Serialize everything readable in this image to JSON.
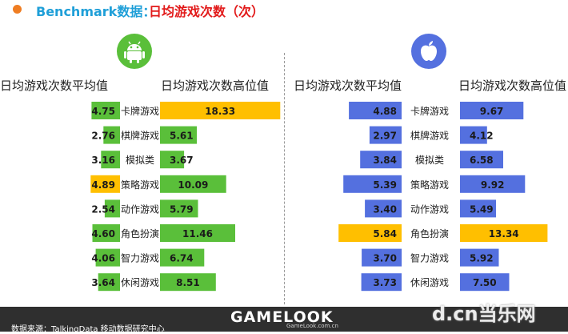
{
  "title": {
    "prefix": "Benchmark数据：",
    "main": "日均游戏次数（次）"
  },
  "colors": {
    "android": "#5abf3a",
    "ios": "#5470df",
    "highlight": "#ffbf00",
    "title_blue": "#1f9fd8",
    "title_red": "#e21b1b",
    "dot": "#ef7d22"
  },
  "icons": {
    "android": "android-robot-icon",
    "ios": "apple-icon"
  },
  "chart_data": {
    "type": "bar",
    "categories": [
      "卡牌游戏",
      "棋牌游戏",
      "模拟类",
      "策略游戏",
      "动作游戏",
      "角色扮演",
      "智力游戏",
      "休闲游戏"
    ],
    "panels": [
      {
        "platform": "Android",
        "series": [
          {
            "name": "日均游戏次数平均值",
            "values": [
              4.75,
              2.76,
              3.16,
              4.89,
              2.54,
              4.6,
              4.06,
              3.64
            ],
            "highlight_index": 3
          },
          {
            "name": "日均游戏次数高位值",
            "values": [
              18.33,
              5.61,
              3.67,
              10.09,
              5.79,
              11.46,
              6.74,
              8.51
            ],
            "highlight_index": 0
          }
        ]
      },
      {
        "platform": "iOS",
        "series": [
          {
            "name": "日均游戏次数平均值",
            "values": [
              4.88,
              2.97,
              3.84,
              5.39,
              3.4,
              5.84,
              3.7,
              3.73
            ],
            "highlight_index": 5
          },
          {
            "name": "日均游戏次数高位值",
            "values": [
              9.67,
              4.12,
              6.58,
              9.92,
              5.49,
              13.34,
              5.92,
              7.5
            ],
            "highlight_index": 5
          }
        ]
      }
    ]
  },
  "footer": {
    "source": "数据来源：TalkingData 移动数据研究中心",
    "brand": "GAMELOOK",
    "brand_sub": "GameLook.com.cn",
    "watermark": "d.cn当乐网"
  }
}
